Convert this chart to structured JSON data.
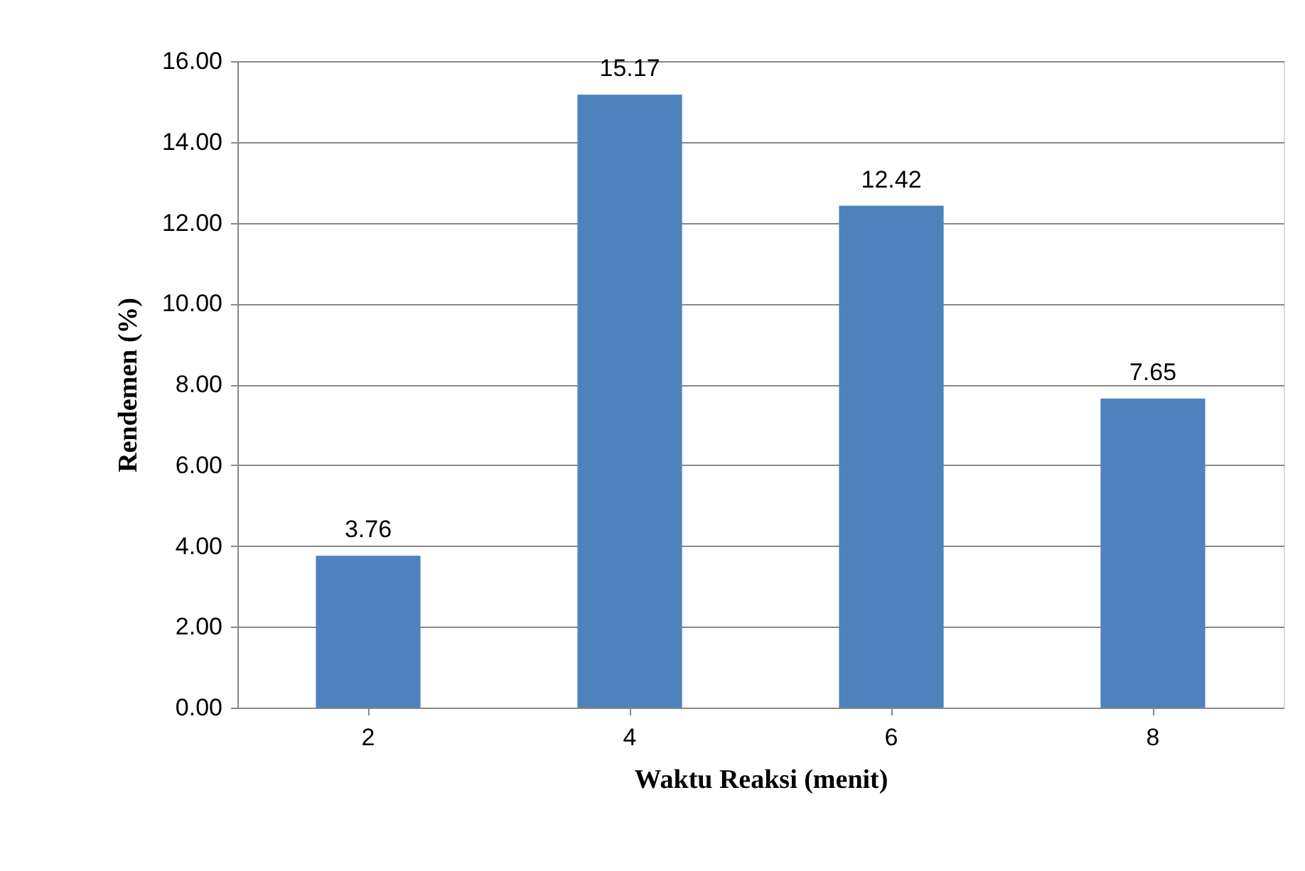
{
  "chart_data": {
    "type": "bar",
    "xlabel": "Waktu Reaksi (menit)",
    "ylabel": "Rendemen (%)",
    "categories": [
      "2",
      "4",
      "6",
      "8"
    ],
    "values": [
      3.76,
      15.17,
      12.42,
      7.65
    ],
    "color": "#4f81bd",
    "ylim": [
      0,
      16
    ],
    "yticks": [
      {
        "value": 0,
        "label": "0.00"
      },
      {
        "value": 2,
        "label": "2.00"
      },
      {
        "value": 4,
        "label": "4.00"
      },
      {
        "value": 6,
        "label": "6.00"
      },
      {
        "value": 8,
        "label": "8.00"
      },
      {
        "value": 10,
        "label": "10.00"
      },
      {
        "value": 12,
        "label": "12.00"
      },
      {
        "value": 14,
        "label": "14.00"
      },
      {
        "value": 16,
        "label": "16.00"
      }
    ],
    "grid": "y",
    "data_labels": true
  }
}
